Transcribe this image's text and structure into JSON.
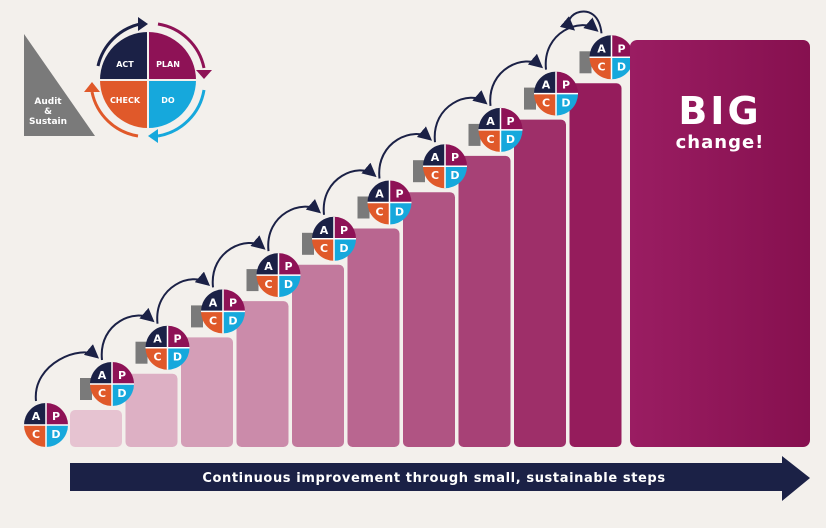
{
  "audit_wedge": {
    "line1": "Audit",
    "line2": "&",
    "line3": "Sustain"
  },
  "pdca_cycle": {
    "act": "ACT",
    "plan": "PLAN",
    "check": "CHECK",
    "do": "DO"
  },
  "mini_cycle": {
    "a": "A",
    "p": "P",
    "c": "C",
    "d": "D"
  },
  "step_count": 11,
  "big_change": {
    "line1": "BIG",
    "line2": "change!"
  },
  "bottom_arrow": {
    "label": "Continuous improvement through small, sustainable steps"
  },
  "colors": {
    "background": "#f3f0ec",
    "navy": "#1b2146",
    "plum": "#8e1256",
    "orange": "#e0592a",
    "cyan": "#16a8dc",
    "gray": "#7a7a7a",
    "step_light": "#e6c3d1",
    "step_dark": "#951c5c",
    "big_block": "#8d1257"
  }
}
